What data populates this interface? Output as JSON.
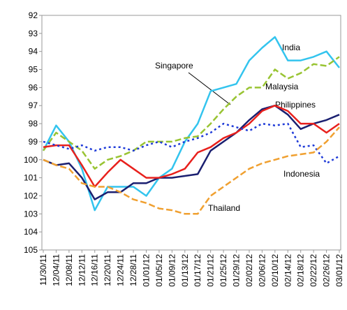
{
  "chart_data": {
    "type": "line",
    "categories": [
      "11/30/11",
      "12/04/11",
      "12/08/11",
      "12/12/11",
      "12/16/11",
      "12/20/11",
      "12/24/11",
      "12/28/11",
      "01/01/12",
      "01/05/12",
      "01/09/12",
      "01/13/12",
      "01/17/12",
      "01/21/12",
      "01/25/12",
      "01/29/12",
      "02/02/12",
      "02/06/12",
      "02/10/12",
      "02/14/12",
      "02/18/12",
      "02/22/12",
      "02/26/12",
      "03/01/12"
    ],
    "series": [
      {
        "name": "India",
        "color": "#33c4ee",
        "style": "solid",
        "values": [
          99.5,
          98.1,
          99.0,
          100.5,
          102.8,
          101.5,
          101.5,
          101.5,
          102.0,
          101.0,
          100.5,
          99.0,
          98.0,
          96.2,
          96.0,
          95.8,
          94.5,
          93.8,
          93.2,
          94.5,
          94.5,
          94.3,
          94.0,
          94.9
        ]
      },
      {
        "name": "Malaysia",
        "color": "#99c433",
        "style": "dashed",
        "values": [
          99.5,
          98.5,
          99.0,
          99.5,
          100.5,
          100.0,
          99.8,
          99.5,
          99.0,
          99.0,
          99.0,
          98.8,
          98.7,
          98.0,
          97.2,
          96.5,
          96.0,
          96.0,
          95.0,
          95.5,
          95.2,
          94.7,
          94.8,
          94.3
        ]
      },
      {
        "name": "Singapore",
        "color": "#1a1f70",
        "style": "solid",
        "values": [
          100.0,
          100.3,
          100.2,
          101.0,
          102.2,
          101.8,
          101.8,
          101.3,
          101.3,
          101.0,
          101.0,
          100.9,
          100.8,
          99.5,
          99.0,
          98.5,
          97.8,
          97.2,
          97.0,
          97.5,
          98.3,
          98.0,
          97.8,
          97.5
        ]
      },
      {
        "name": "Philippines",
        "color": "#e8201c",
        "style": "solid",
        "values": [
          99.3,
          99.2,
          99.2,
          100.3,
          101.5,
          100.7,
          100.0,
          100.5,
          101.0,
          101.0,
          100.8,
          100.5,
          99.6,
          99.3,
          98.8,
          98.5,
          98.0,
          97.3,
          97.0,
          97.3,
          98.0,
          98.0,
          98.5,
          98.0
        ]
      },
      {
        "name": "Indonesia",
        "color": "#1f3bd8",
        "style": "dotted",
        "values": [
          99.0,
          99.2,
          99.4,
          99.2,
          99.5,
          99.3,
          99.3,
          99.5,
          99.2,
          99.0,
          99.3,
          99.0,
          98.8,
          98.5,
          98.0,
          98.2,
          98.4,
          98.0,
          98.1,
          98.0,
          99.3,
          99.2,
          100.2,
          99.8
        ]
      },
      {
        "name": "Thailand",
        "color": "#f0a030",
        "style": "dashed",
        "values": [
          100.0,
          100.3,
          100.5,
          101.3,
          101.5,
          101.5,
          101.8,
          102.2,
          102.4,
          102.7,
          102.8,
          103.0,
          103.0,
          102.0,
          101.5,
          101.0,
          100.5,
          100.2,
          100.0,
          99.8,
          99.7,
          99.6,
          99.0,
          98.2
        ]
      }
    ],
    "ylim": [
      92,
      105
    ],
    "yticks": [
      92,
      93,
      94,
      95,
      96,
      97,
      98,
      99,
      100,
      101,
      102,
      103,
      104,
      105
    ],
    "y_inverted": true,
    "grid": false
  }
}
